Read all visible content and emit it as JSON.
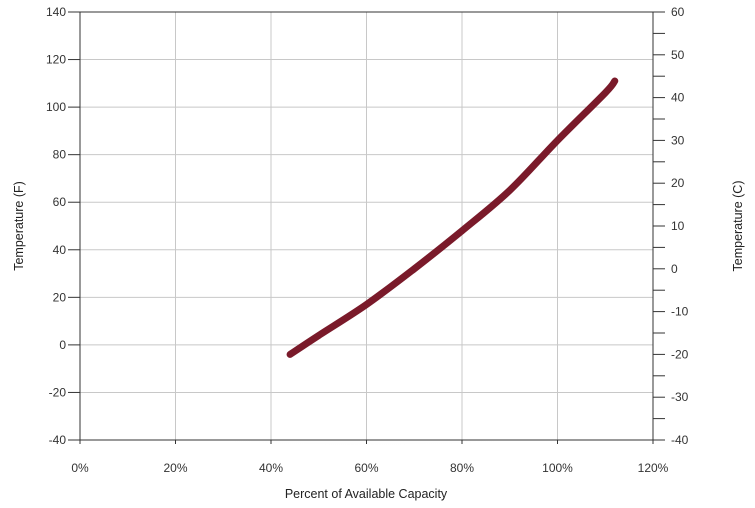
{
  "chart_data": {
    "type": "line",
    "xlabel": "Percent of Available Capacity",
    "ylabel_left": "Temperature (F)",
    "ylabel_right": "Temperature (C)",
    "xlim": [
      0,
      120
    ],
    "ylim_left": [
      -40,
      140
    ],
    "ylim_right": [
      -40,
      60
    ],
    "x_ticks": [
      "0%",
      "20%",
      "40%",
      "60%",
      "80%",
      "100%",
      "120%"
    ],
    "y_left_ticks": [
      "-40",
      "-20",
      "0",
      "20",
      "40",
      "60",
      "80",
      "100",
      "120",
      "140"
    ],
    "y_right_ticks": [
      "-40",
      "-30",
      "-20",
      "-10",
      "0",
      "10",
      "20",
      "30",
      "40",
      "50",
      "60"
    ],
    "grid": true,
    "legend": "none",
    "series": [
      {
        "color": "#7a1a2a",
        "x": [
          44,
          50,
          60,
          70,
          80,
          90,
          100,
          110,
          112
        ],
        "y": [
          -4,
          4,
          17,
          32,
          48,
          65,
          86,
          106,
          111
        ]
      }
    ]
  }
}
